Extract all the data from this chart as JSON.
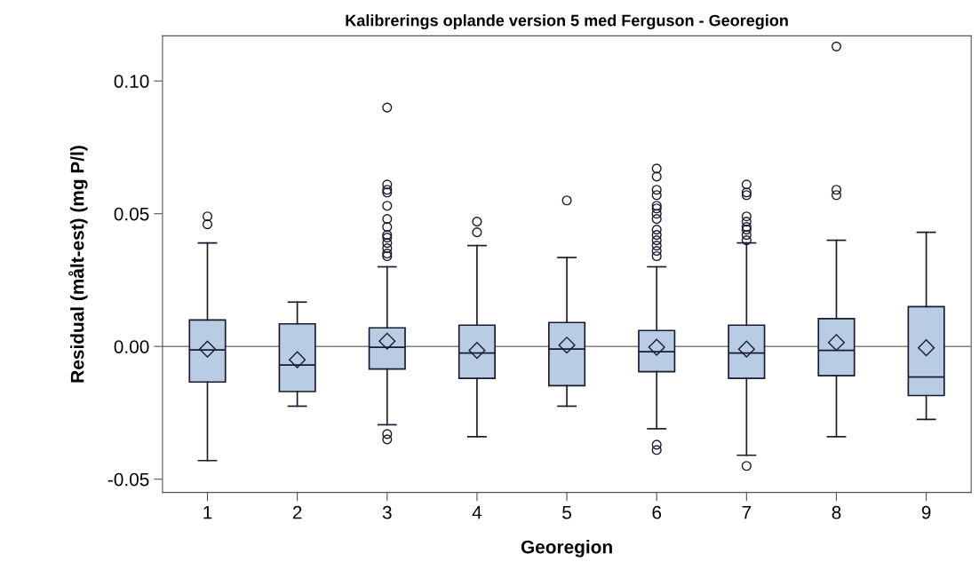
{
  "chart_data": {
    "type": "box",
    "title": "Kalibrerings oplande version 5 med Ferguson - Georegion",
    "xlabel": "Georegion",
    "ylabel": "Residual (målt-est) (mg P/l)",
    "categories": [
      "1",
      "2",
      "3",
      "4",
      "5",
      "6",
      "7",
      "8",
      "9"
    ],
    "color": "#b8cce4",
    "boxes": [
      {
        "low": -0.043,
        "q1": -0.0134,
        "median": -0.0013,
        "q3": 0.01,
        "high": 0.039,
        "mean": -0.001,
        "outliers": [
          0.049,
          0.046
        ]
      },
      {
        "low": -0.0225,
        "q1": -0.017,
        "median": -0.007,
        "q3": 0.0085,
        "high": 0.0167,
        "mean": -0.005
      },
      {
        "low": -0.0295,
        "q1": -0.0085,
        "median": -0.0003,
        "q3": 0.007,
        "high": 0.03,
        "mean": 0.002,
        "outliers": [
          0.09,
          0.061,
          0.059,
          0.058,
          0.053,
          0.048,
          0.045,
          0.042,
          0.041,
          0.039,
          0.037,
          0.035,
          0.034,
          -0.033,
          -0.035
        ]
      },
      {
        "low": -0.034,
        "q1": -0.012,
        "median": -0.0025,
        "q3": 0.008,
        "high": 0.038,
        "mean": -0.0015,
        "outliers": [
          0.047,
          0.043
        ]
      },
      {
        "low": -0.0225,
        "q1": -0.0148,
        "median": -0.001,
        "q3": 0.009,
        "high": 0.0335,
        "mean": 0.0005,
        "outliers": [
          0.055
        ]
      },
      {
        "low": -0.031,
        "q1": -0.0095,
        "median": -0.002,
        "q3": 0.006,
        "high": 0.03,
        "mean": -0.0003,
        "outliers": [
          0.067,
          0.064,
          0.059,
          0.057,
          0.053,
          0.052,
          0.05,
          0.048,
          0.044,
          0.042,
          0.04,
          0.038,
          0.036,
          0.034,
          -0.037,
          -0.039
        ]
      },
      {
        "low": -0.041,
        "q1": -0.012,
        "median": -0.0025,
        "q3": 0.008,
        "high": 0.039,
        "mean": -0.001,
        "outliers": [
          0.061,
          0.058,
          0.057,
          0.049,
          0.047,
          0.045,
          0.044,
          0.042,
          0.04,
          -0.045
        ]
      },
      {
        "low": -0.034,
        "q1": -0.011,
        "median": -0.0015,
        "q3": 0.0105,
        "high": 0.04,
        "mean": 0.0015,
        "outliers": [
          0.113,
          0.059,
          0.057
        ]
      },
      {
        "low": -0.0275,
        "q1": -0.0185,
        "median": -0.0115,
        "q3": 0.015,
        "high": 0.043,
        "mean": -0.0005
      }
    ],
    "ylim": [
      -0.055,
      0.117
    ],
    "yticks": [
      {
        "value": -0.05,
        "label": "-0.05"
      },
      {
        "value": 0.0,
        "label": "0.00"
      },
      {
        "value": 0.05,
        "label": "0.05"
      },
      {
        "value": 0.1,
        "label": "0.10"
      }
    ],
    "ref_lines": [
      {
        "axis": "y",
        "value": 0,
        "color": "#808080"
      }
    ],
    "grid": false
  }
}
